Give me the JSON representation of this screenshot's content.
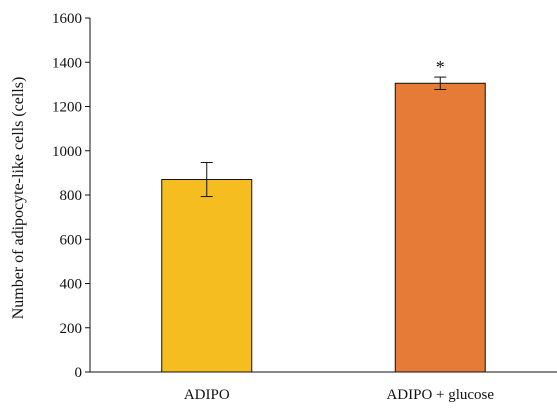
{
  "chart_data": {
    "type": "bar",
    "title": "",
    "xlabel": "",
    "ylabel": "Number of adipocyte-like cells (cells)",
    "ylim": [
      0,
      1600
    ],
    "yticks": [
      0,
      200,
      400,
      600,
      800,
      1000,
      1200,
      1400,
      1600
    ],
    "categories": [
      "ADIPO",
      "ADIPO + glucose"
    ],
    "values": [
      870,
      1305
    ],
    "errors": [
      77,
      28
    ],
    "bar_colors": [
      "#F5BD1F",
      "#E57B37"
    ],
    "annotations": [
      "",
      "*"
    ],
    "grid": false,
    "legend": "none"
  }
}
